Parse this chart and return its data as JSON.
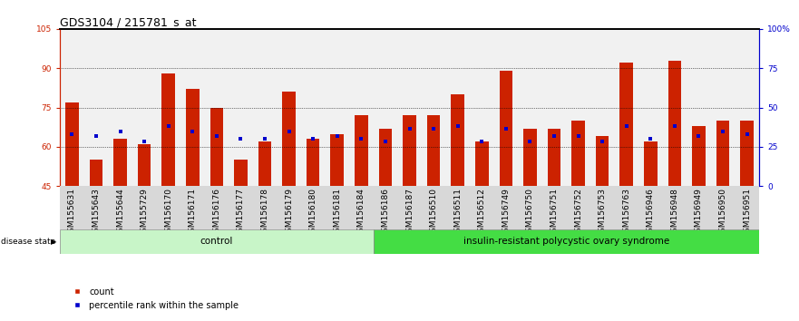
{
  "title": "GDS3104 / 215781_s_at",
  "samples": [
    "GSM155631",
    "GSM155643",
    "GSM155644",
    "GSM155729",
    "GSM156170",
    "GSM156171",
    "GSM156176",
    "GSM156177",
    "GSM156178",
    "GSM156179",
    "GSM156180",
    "GSM156181",
    "GSM156184",
    "GSM156186",
    "GSM156187",
    "GSM156510",
    "GSM156511",
    "GSM156512",
    "GSM156749",
    "GSM156750",
    "GSM156751",
    "GSM156752",
    "GSM156753",
    "GSM156763",
    "GSM156946",
    "GSM156948",
    "GSM156949",
    "GSM156950",
    "GSM156951"
  ],
  "red_values": [
    77,
    55,
    63,
    61,
    88,
    82,
    75,
    55,
    62,
    81,
    63,
    65,
    72,
    67,
    72,
    72,
    80,
    62,
    89,
    67,
    67,
    70,
    64,
    92,
    62,
    93,
    68,
    70,
    70
  ],
  "blue_values": [
    65,
    64,
    66,
    62,
    68,
    66,
    64,
    63,
    63,
    66,
    63,
    64,
    63,
    62,
    67,
    67,
    68,
    62,
    67,
    62,
    64,
    64,
    62,
    68,
    63,
    68,
    64,
    66,
    65
  ],
  "n_control": 13,
  "n_disease": 16,
  "control_color": "#c8f5c8",
  "disease_color": "#44dd44",
  "ylim_left": [
    45,
    105
  ],
  "ylim_right": [
    0,
    100
  ],
  "yticks_left": [
    45,
    60,
    75,
    90,
    105
  ],
  "yticks_right": [
    0,
    25,
    50,
    75,
    100
  ],
  "ytick_labels_left": [
    "45",
    "60",
    "75",
    "90",
    "105"
  ],
  "ytick_labels_right": [
    "0",
    "25",
    "50",
    "75",
    "100%"
  ],
  "hlines": [
    60,
    75,
    90
  ],
  "bar_color": "#CC2200",
  "dot_color": "#0000CC",
  "bar_width": 0.55,
  "title_fontsize": 9,
  "tick_fontsize": 6.5,
  "left_axis_color": "#CC2200",
  "right_axis_color": "#0000CC",
  "group_label_fontsize": 7.5,
  "legend_fontsize": 7,
  "xtick_bg": "#d8d8d8"
}
